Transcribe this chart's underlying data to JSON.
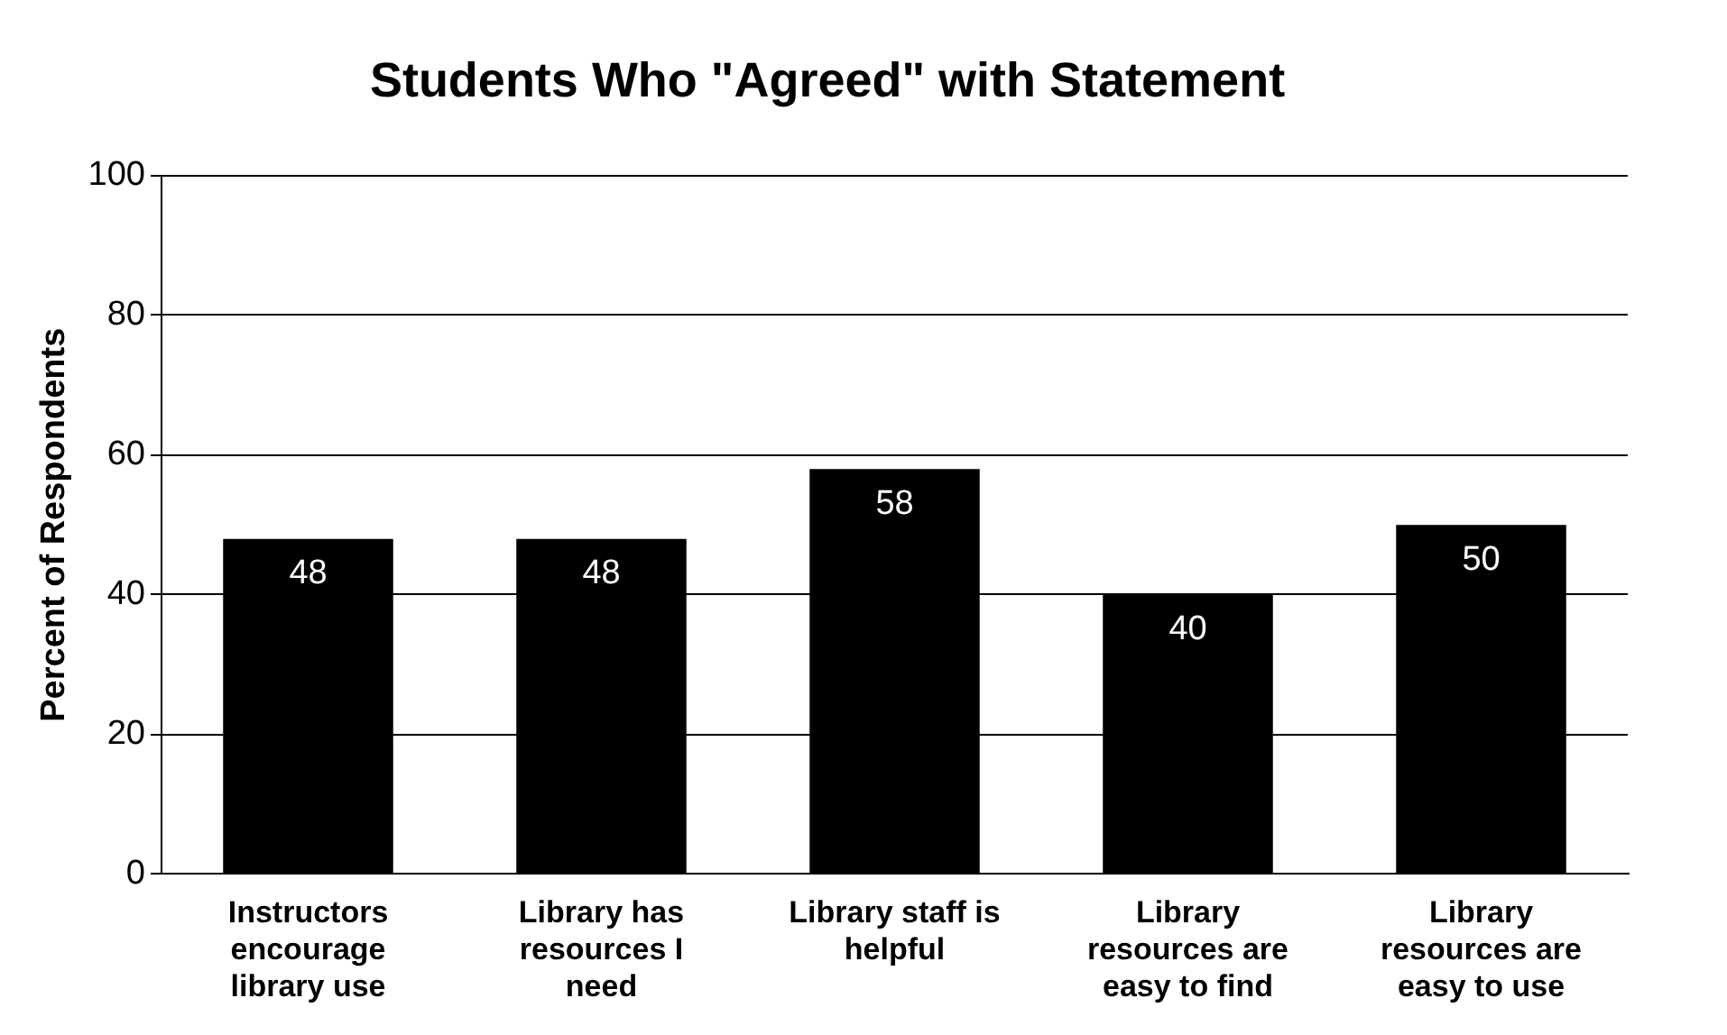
{
  "chart_data": {
    "type": "bar",
    "title": "Students Who \"Agreed\" with Statement",
    "ylabel": "Percent of Respondents",
    "categories": [
      "Instructors encourage library use",
      "Library has resources I need",
      "Library staff is helpful",
      "Library resources are easy to find",
      "Library resources are easy to use"
    ],
    "values": [
      48,
      48,
      58,
      40,
      50
    ],
    "color": "#000000",
    "ylim": [
      0,
      100
    ],
    "yticks": [
      0,
      20,
      40,
      60,
      80,
      100
    ],
    "grid": "y",
    "data_labels": true,
    "legend": false
  }
}
